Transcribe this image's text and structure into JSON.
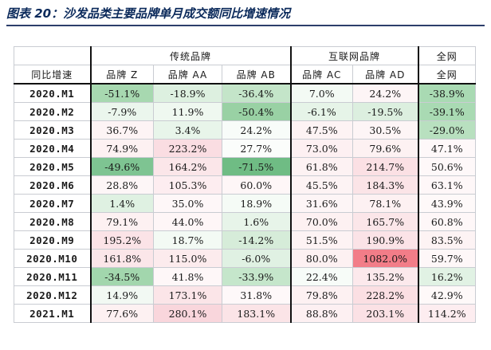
{
  "title": "图表 20：沙发品类主要品牌单月成交额同比增速情况",
  "header": {
    "group_traditional": "传统品牌",
    "group_internet": "互联网品牌",
    "group_total": "全网",
    "row_label": "同比增速",
    "col_z": "品牌 Z",
    "col_aa": "品牌 AA",
    "col_ab": "品牌 AB",
    "col_ac": "品牌 AC",
    "col_ad": "品牌 AD",
    "col_total": "全网"
  },
  "rows": [
    {
      "label": "2020.M1",
      "cells": [
        {
          "v": "-51.1%",
          "bg": "#a7d8b0"
        },
        {
          "v": "-18.9%",
          "bg": "#ddf0e0"
        },
        {
          "v": "-36.4%",
          "bg": "#c4e5c9"
        },
        {
          "v": "7.0%",
          "bg": "#f3faf4"
        },
        {
          "v": "24.2%",
          "bg": "#fdf5f6"
        },
        {
          "v": "-38.9%",
          "bg": "#a9dab3"
        }
      ]
    },
    {
      "label": "2020.M2",
      "cells": [
        {
          "v": "-7.9%",
          "bg": "#ebf6ed"
        },
        {
          "v": "11.9%",
          "bg": "#eff8f0"
        },
        {
          "v": "-50.4%",
          "bg": "#99d1a4"
        },
        {
          "v": "-6.1%",
          "bg": "#e6f4e8"
        },
        {
          "v": "-19.5%",
          "bg": "#dcefdf"
        },
        {
          "v": "-39.1%",
          "bg": "#a9dab3"
        }
      ]
    },
    {
      "label": "2020.M3",
      "cells": [
        {
          "v": "36.7%",
          "bg": "#fdf4f5"
        },
        {
          "v": "3.4%",
          "bg": "#e8f5ea"
        },
        {
          "v": "24.2%",
          "bg": "#f8fcf9"
        },
        {
          "v": "47.5%",
          "bg": "#fdf3f4"
        },
        {
          "v": "30.5%",
          "bg": "#fdf5f6"
        },
        {
          "v": "-29.0%",
          "bg": "#b8e0bf"
        }
      ]
    },
    {
      "label": "2020.M4",
      "cells": [
        {
          "v": "74.9%",
          "bg": "#fdf1f2"
        },
        {
          "v": "223.2%",
          "bg": "#fadde2"
        },
        {
          "v": "27.7%",
          "bg": "#fbfdfb"
        },
        {
          "v": "73.0%",
          "bg": "#fdf0f2"
        },
        {
          "v": "79.6%",
          "bg": "#fdf1f2"
        },
        {
          "v": "47.1%",
          "bg": "#fef8f9"
        }
      ]
    },
    {
      "label": "2020.M5",
      "cells": [
        {
          "v": "-49.6%",
          "bg": "#7ec492"
        },
        {
          "v": "164.2%",
          "bg": "#fbe6e9"
        },
        {
          "v": "-71.5%",
          "bg": "#6fbc84"
        },
        {
          "v": "61.8%",
          "bg": "#fdf2f3"
        },
        {
          "v": "214.7%",
          "bg": "#fbe0e4"
        },
        {
          "v": "50.6%",
          "bg": "#fef8f9"
        }
      ]
    },
    {
      "label": "2020.M6",
      "cells": [
        {
          "v": "28.8%",
          "bg": "#fdf6f7"
        },
        {
          "v": "105.3%",
          "bg": "#fdedf0"
        },
        {
          "v": "60.0%",
          "bg": "#fef6f7"
        },
        {
          "v": "45.5%",
          "bg": "#fdf3f4"
        },
        {
          "v": "184.3%",
          "bg": "#fbe4e7"
        },
        {
          "v": "63.1%",
          "bg": "#fef7f8"
        }
      ]
    },
    {
      "label": "2020.M7",
      "cells": [
        {
          "v": "1.4%",
          "bg": "#dff1e2"
        },
        {
          "v": "35.0%",
          "bg": "#fef7f8"
        },
        {
          "v": "18.9%",
          "bg": "#f5fbf6"
        },
        {
          "v": "31.6%",
          "bg": "#fdf5f6"
        },
        {
          "v": "78.1%",
          "bg": "#fdf1f2"
        },
        {
          "v": "43.9%",
          "bg": "#fef9f9"
        }
      ]
    },
    {
      "label": "2020.M8",
      "cells": [
        {
          "v": "79.1%",
          "bg": "#fdf1f2"
        },
        {
          "v": "44.0%",
          "bg": "#fef6f7"
        },
        {
          "v": "1.6%",
          "bg": "#e7f4e9"
        },
        {
          "v": "70.0%",
          "bg": "#fdf1f2"
        },
        {
          "v": "165.7%",
          "bg": "#fbe6e9"
        },
        {
          "v": "60.8%",
          "bg": "#fef7f8"
        }
      ]
    },
    {
      "label": "2020.M9",
      "cells": [
        {
          "v": "195.2%",
          "bg": "#fbe3e7"
        },
        {
          "v": "18.7%",
          "bg": "#f3faf4"
        },
        {
          "v": "-14.2%",
          "bg": "#d6ecd9"
        },
        {
          "v": "51.5%",
          "bg": "#fdf3f4"
        },
        {
          "v": "190.9%",
          "bg": "#fbe3e7"
        },
        {
          "v": "83.5%",
          "bg": "#fdf3f4"
        }
      ]
    },
    {
      "label": "2020.M10",
      "cells": [
        {
          "v": "161.8%",
          "bg": "#fbe6e9"
        },
        {
          "v": "115.0%",
          "bg": "#fcebed"
        },
        {
          "v": "-6.0%",
          "bg": "#e0f1e3"
        },
        {
          "v": "80.0%",
          "bg": "#fdf1f2"
        },
        {
          "v": "1082.0%",
          "bg": "#f27d88"
        },
        {
          "v": "59.7%",
          "bg": "#fef7f8"
        }
      ]
    },
    {
      "label": "2020.M11",
      "cells": [
        {
          "v": "-34.5%",
          "bg": "#a2d6ad"
        },
        {
          "v": "41.8%",
          "bg": "#fef7f8"
        },
        {
          "v": "-33.9%",
          "bg": "#c5e6cb"
        },
        {
          "v": "22.4%",
          "bg": "#f7fcf8"
        },
        {
          "v": "135.2%",
          "bg": "#fce9ec"
        },
        {
          "v": "16.2%",
          "bg": "#e1f2e4"
        }
      ]
    },
    {
      "label": "2020.M12",
      "cells": [
        {
          "v": "14.9%",
          "bg": "#f2f9f3"
        },
        {
          "v": "173.1%",
          "bg": "#fbe5e8"
        },
        {
          "v": "31.8%",
          "bg": "#fef8f9"
        },
        {
          "v": "79.8%",
          "bg": "#fdf1f2"
        },
        {
          "v": "228.2%",
          "bg": "#fbdfe3"
        },
        {
          "v": "42.9%",
          "bg": "#fef9f9"
        }
      ]
    },
    {
      "label": "2021.M1",
      "cells": [
        {
          "v": "77.6%",
          "bg": "#fdf1f2"
        },
        {
          "v": "280.1%",
          "bg": "#f9d6dc"
        },
        {
          "v": "183.1%",
          "bg": "#fbe4e7"
        },
        {
          "v": "88.8%",
          "bg": "#fdf0f2"
        },
        {
          "v": "203.1%",
          "bg": "#fbe1e5"
        },
        {
          "v": "114.2%",
          "bg": "#fdedf0"
        }
      ]
    }
  ]
}
